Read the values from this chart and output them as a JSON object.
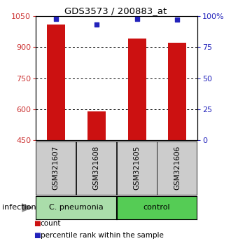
{
  "title": "GDS3573 / 200883_at",
  "samples": [
    "GSM321607",
    "GSM321608",
    "GSM321605",
    "GSM321606"
  ],
  "counts": [
    1010,
    590,
    940,
    920
  ],
  "percentile_ranks": [
    98,
    93,
    98,
    97
  ],
  "ylim_left": [
    450,
    1050
  ],
  "ylim_right": [
    0,
    100
  ],
  "yticks_left": [
    450,
    600,
    750,
    900,
    1050
  ],
  "yticks_right": [
    0,
    25,
    50,
    75,
    100
  ],
  "ytick_labels_right": [
    "0",
    "25",
    "50",
    "75",
    "100%"
  ],
  "groups": [
    {
      "label": "C. pneumonia",
      "color": "#aaddaa",
      "samples": [
        0,
        1
      ]
    },
    {
      "label": "control",
      "color": "#55cc55",
      "samples": [
        2,
        3
      ]
    }
  ],
  "group_row_label": "infection",
  "bar_color": "#cc1111",
  "dot_color": "#2222bb",
  "bar_width": 0.45,
  "background_color": "#ffffff",
  "plot_bg_color": "#ffffff",
  "grid_color": "#000000",
  "sample_box_color": "#cccccc",
  "left_tick_color": "#cc3333",
  "right_tick_color": "#2222bb",
  "grid_lines": [
    600,
    750,
    900
  ],
  "legend_items": [
    {
      "color": "#cc1111",
      "label": "count"
    },
    {
      "color": "#2222bb",
      "label": "percentile rank within the sample"
    }
  ]
}
